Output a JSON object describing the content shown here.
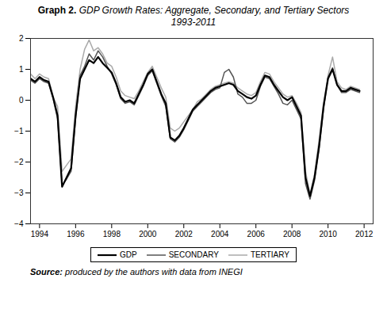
{
  "chart_data": {
    "type": "line",
    "title": "Graph 2. GDP Growth Rates: Aggregate, Secondary, and Tertiary Sectors",
    "subtitle": "1993-2011",
    "caption": "Source: produced by the authors with data from INEGI",
    "xlim": [
      1993.5,
      2012.5
    ],
    "xticks": [
      1994,
      1996,
      1998,
      2000,
      2002,
      2004,
      2006,
      2008,
      2010,
      2012
    ],
    "ylim": [
      -4,
      2
    ],
    "yticks": [
      -4,
      -3,
      -2,
      -1,
      0,
      1,
      2
    ],
    "grid": false,
    "legend": "bottom",
    "x": [
      1993.5,
      1993.75,
      1994.0,
      1994.25,
      1994.5,
      1994.75,
      1995.0,
      1995.25,
      1995.5,
      1995.75,
      1996.0,
      1996.25,
      1996.5,
      1996.75,
      1997.0,
      1997.25,
      1997.5,
      1997.75,
      1998.0,
      1998.25,
      1998.5,
      1998.75,
      1999.0,
      1999.25,
      1999.5,
      1999.75,
      2000.0,
      2000.25,
      2000.5,
      2000.75,
      2001.0,
      2001.25,
      2001.5,
      2001.75,
      2002.0,
      2002.25,
      2002.5,
      2002.75,
      2003.0,
      2003.25,
      2003.5,
      2003.75,
      2004.0,
      2004.25,
      2004.5,
      2004.75,
      2005.0,
      2005.25,
      2005.5,
      2005.75,
      2006.0,
      2006.25,
      2006.5,
      2006.75,
      2007.0,
      2007.25,
      2007.5,
      2007.75,
      2008.0,
      2008.25,
      2008.5,
      2008.75,
      2009.0,
      2009.25,
      2009.5,
      2009.75,
      2010.0,
      2010.25,
      2010.5,
      2010.75,
      2011.0,
      2011.25,
      2011.5,
      2011.75
    ],
    "series": [
      {
        "name": "GDP",
        "color": "#000000",
        "values": [
          0.7,
          0.6,
          0.75,
          0.65,
          0.6,
          0.1,
          -0.5,
          -2.8,
          -2.5,
          -2.2,
          -0.5,
          0.7,
          1.0,
          1.3,
          1.2,
          1.4,
          1.2,
          1.05,
          0.9,
          0.55,
          0.1,
          -0.05,
          0.0,
          -0.1,
          0.2,
          0.5,
          0.85,
          1.0,
          0.6,
          0.2,
          -0.1,
          -1.2,
          -1.3,
          -1.15,
          -0.9,
          -0.6,
          -0.3,
          -0.15,
          0.0,
          0.15,
          0.3,
          0.4,
          0.45,
          0.5,
          0.55,
          0.5,
          0.3,
          0.2,
          0.1,
          0.05,
          0.15,
          0.5,
          0.8,
          0.75,
          0.5,
          0.3,
          0.1,
          0.0,
          0.1,
          -0.2,
          -0.5,
          -2.5,
          -3.1,
          -2.5,
          -1.5,
          -0.2,
          0.7,
          1.0,
          0.5,
          0.3,
          0.3,
          0.4,
          0.35,
          0.3
        ]
      },
      {
        "name": "SECONDARY",
        "color": "#555555",
        "values": [
          0.65,
          0.55,
          0.7,
          0.6,
          0.55,
          0.05,
          -0.6,
          -2.75,
          -2.55,
          -2.3,
          -0.6,
          0.8,
          1.1,
          1.5,
          1.3,
          1.6,
          1.4,
          1.1,
          0.85,
          0.5,
          0.05,
          -0.1,
          -0.05,
          -0.15,
          0.15,
          0.45,
          0.8,
          0.95,
          0.55,
          0.15,
          -0.2,
          -1.25,
          -1.35,
          -1.2,
          -0.95,
          -0.65,
          -0.35,
          -0.2,
          -0.05,
          0.1,
          0.25,
          0.35,
          0.4,
          0.9,
          1.0,
          0.75,
          0.2,
          0.1,
          -0.1,
          -0.1,
          0.0,
          0.45,
          0.75,
          0.7,
          0.45,
          0.2,
          -0.1,
          -0.15,
          0.0,
          -0.3,
          -0.6,
          -2.7,
          -3.2,
          -2.6,
          -1.6,
          -0.3,
          0.75,
          1.05,
          0.5,
          0.25,
          0.25,
          0.35,
          0.3,
          0.25
        ]
      },
      {
        "name": "TERTIARY",
        "color": "#aaaaaa",
        "values": [
          0.85,
          0.7,
          0.85,
          0.75,
          0.7,
          0.1,
          -0.2,
          -2.3,
          -2.1,
          -1.9,
          -0.2,
          1.0,
          1.65,
          1.95,
          1.6,
          1.7,
          1.5,
          1.2,
          1.1,
          0.75,
          0.3,
          0.15,
          0.1,
          0.05,
          0.3,
          0.6,
          0.9,
          1.1,
          0.75,
          0.4,
          0.1,
          -0.9,
          -1.0,
          -0.9,
          -0.7,
          -0.5,
          -0.3,
          -0.05,
          0.05,
          0.2,
          0.35,
          0.45,
          0.5,
          0.55,
          0.6,
          0.55,
          0.4,
          0.3,
          0.2,
          0.15,
          0.25,
          0.6,
          0.9,
          0.85,
          0.6,
          0.4,
          0.2,
          0.1,
          0.15,
          -0.1,
          -0.4,
          -2.3,
          -3.05,
          -2.4,
          -1.3,
          -0.1,
          0.8,
          1.4,
          0.6,
          0.4,
          0.35,
          0.45,
          0.4,
          0.35
        ]
      }
    ]
  }
}
